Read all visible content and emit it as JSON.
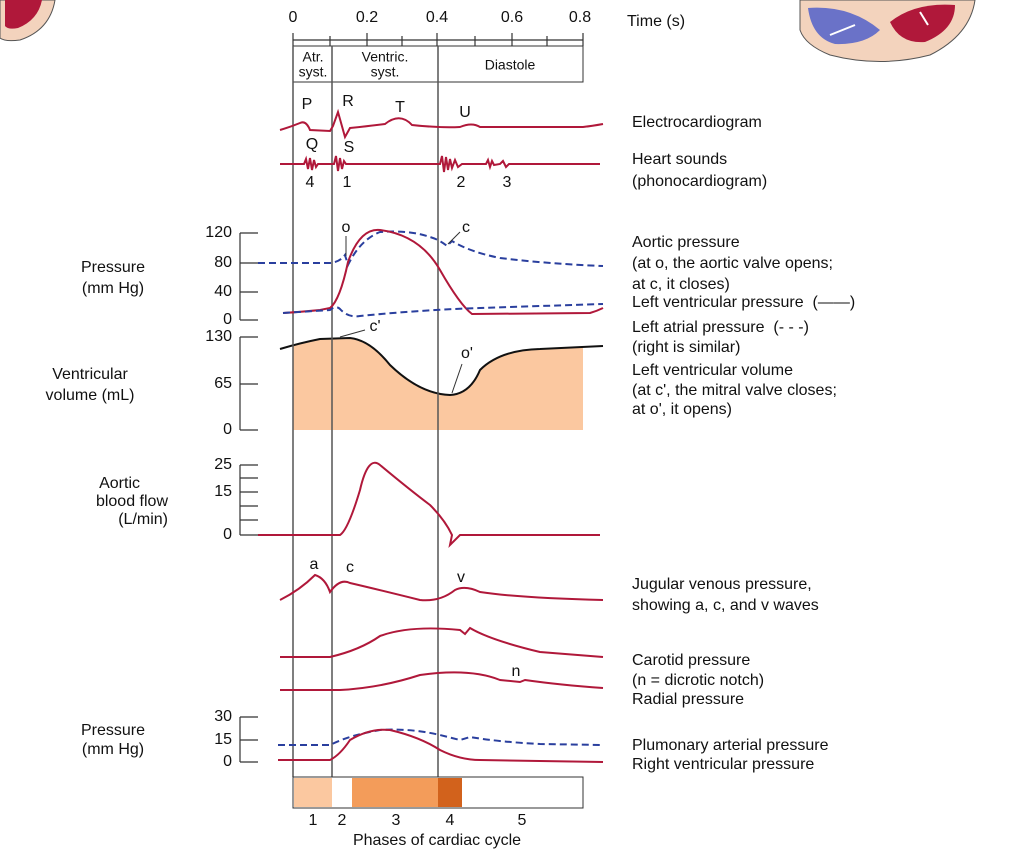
{
  "time_axis": {
    "label": "Time (s)",
    "ticks": [
      "0",
      "0.2",
      "0.4",
      "0.6",
      "0.8"
    ]
  },
  "phase_header": [
    {
      "lines": [
        "Atr.",
        "syst."
      ]
    },
    {
      "lines": [
        "Ventric.",
        "syst."
      ]
    },
    {
      "lines": [
        "Diastole"
      ]
    }
  ],
  "ecg_waves": [
    "P",
    "R",
    "T",
    "U",
    "Q",
    "S"
  ],
  "heart_sounds": [
    "4",
    "1",
    "2",
    "3"
  ],
  "pressure_axis": {
    "label": [
      "Pressure",
      "(mm Hg)"
    ],
    "ticks": [
      "120",
      "80",
      "40",
      "0"
    ],
    "markers": [
      "o",
      "c"
    ]
  },
  "volume_axis": {
    "label": [
      "Ventricular",
      "volume (mL)"
    ],
    "ticks": [
      "130",
      "65",
      "0"
    ],
    "markers": [
      "c'",
      "o'"
    ]
  },
  "flow_axis": {
    "label": [
      "Aortic",
      "blood flow",
      "(L/min)"
    ],
    "ticks": [
      "25",
      "15",
      "0"
    ]
  },
  "jugular_waves": [
    "a",
    "c",
    "v"
  ],
  "pulse_marker": "n",
  "pulmonary_axis": {
    "label": [
      "Pressure",
      "(mm Hg)"
    ],
    "ticks": [
      "30",
      "15",
      "0"
    ]
  },
  "captions": [
    "Electrocardiogram",
    "Heart sounds",
    "(phonocardiogram)",
    "Aortic pressure",
    "(at o, the aortic valve opens;",
    "at c, it closes)",
    "Left ventricular pressure  (——)",
    "Left atrial pressure  (- - -)",
    "(right is similar)",
    "Left ventricular volume",
    "(at c', the mitral valve closes;",
    "at o', it opens)",
    "Jugular venous pressure,",
    "showing a, c, and v waves",
    "Carotid pressure",
    "(n = dicrotic notch)",
    "Radial pressure",
    "Plumonary arterial pressure",
    "Right ventricular pressure"
  ],
  "phases": [
    "1",
    "2",
    "3",
    "4",
    "5"
  ],
  "phases_title": "Phases of cardiac cycle"
}
